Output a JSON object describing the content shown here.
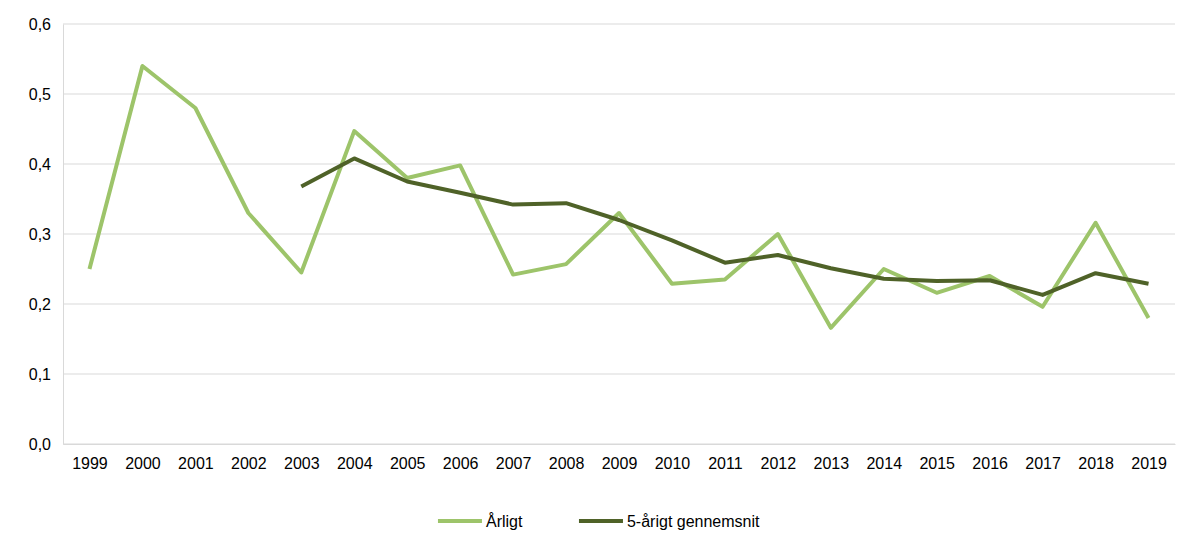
{
  "chart_data": {
    "type": "line",
    "categories": [
      "1999",
      "2000",
      "2001",
      "2002",
      "2003",
      "2004",
      "2005",
      "2006",
      "2007",
      "2008",
      "2009",
      "2010",
      "2011",
      "2012",
      "2013",
      "2014",
      "2015",
      "2016",
      "2017",
      "2018",
      "2019"
    ],
    "series": [
      {
        "name": "Årligt",
        "color": "#9dc46a",
        "values": [
          0.25,
          0.54,
          0.48,
          0.33,
          0.245,
          0.447,
          0.38,
          0.398,
          0.242,
          0.257,
          0.33,
          0.229,
          0.235,
          0.3,
          0.166,
          0.25,
          0.216,
          0.24,
          0.196,
          0.316,
          0.18
        ]
      },
      {
        "name": "5-årigt gennemsnit",
        "color": "#4f6228",
        "values": [
          null,
          null,
          null,
          null,
          0.368,
          0.408,
          0.375,
          0.359,
          0.342,
          0.344,
          0.32,
          0.291,
          0.259,
          0.27,
          0.251,
          0.236,
          0.233,
          0.234,
          0.213,
          0.244,
          0.229
        ]
      }
    ],
    "ylim": [
      0,
      0.6
    ],
    "yticks": [
      {
        "value": 0,
        "label": "0,0"
      },
      {
        "value": 0.1,
        "label": "0,1"
      },
      {
        "value": 0.2,
        "label": "0,2"
      },
      {
        "value": 0.3,
        "label": "0,3"
      },
      {
        "value": 0.4,
        "label": "0,4"
      },
      {
        "value": 0.5,
        "label": "0,5"
      },
      {
        "value": 0.6,
        "label": "0,6"
      }
    ],
    "grid": true,
    "legend": "bottom"
  }
}
